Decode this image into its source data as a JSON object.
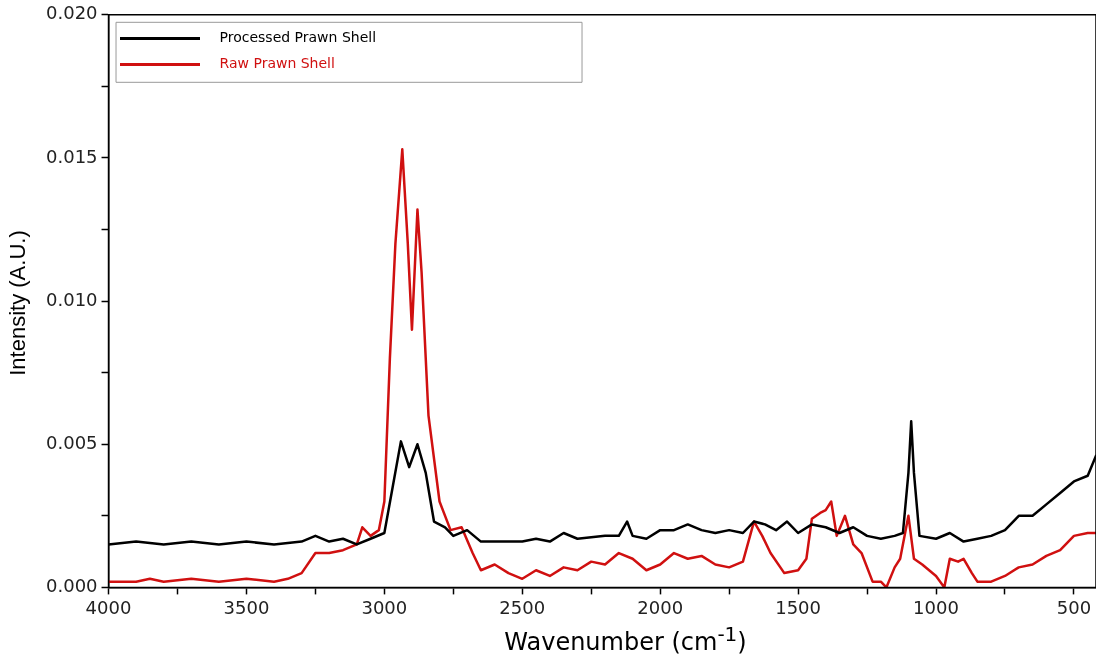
{
  "chart_data": {
    "type": "line",
    "xlabel": "Wavenumber (cm$^{-1}$)",
    "ylabel": "Intensity (A.U.)",
    "xlim": [
      4000,
      420
    ],
    "ylim": [
      0,
      0.02
    ],
    "xticks": [
      4000,
      {
        "value": 3750,
        "label": null
      },
      3500,
      {
        "value": 3250,
        "label": null
      },
      3000,
      {
        "value": 2750,
        "label": null
      },
      2500,
      {
        "value": 2250,
        "label": null
      },
      2000,
      {
        "value": 1750,
        "label": null
      },
      1500,
      {
        "value": 1250,
        "label": null
      },
      1000,
      {
        "value": 750,
        "label": null
      },
      500
    ],
    "yticks": [
      {
        "value": 0,
        "label": "0.000"
      },
      {
        "value": 0.0025,
        "label": null
      },
      {
        "value": 0.005,
        "label": "0.005"
      },
      {
        "value": 0.0075,
        "label": null
      },
      {
        "value": 0.01,
        "label": "0.010"
      },
      {
        "value": 0.0125,
        "label": null
      },
      {
        "value": 0.015,
        "label": "0.015"
      },
      {
        "value": 0.0175,
        "label": null
      },
      {
        "value": 0.02,
        "label": "0.020"
      }
    ],
    "grid": false,
    "legend": "top left",
    "marker": "none",
    "line_style": "solid",
    "series": [
      {
        "name": "Processed Prawn Shell",
        "color": "#000000",
        "x": [
          4000,
          3900,
          3800,
          3700,
          3600,
          3500,
          3400,
          3300,
          3250,
          3200,
          3150,
          3100,
          3050,
          3000,
          2970,
          2940,
          2910,
          2880,
          2850,
          2820,
          2780,
          2750,
          2700,
          2650,
          2600,
          2500,
          2450,
          2400,
          2350,
          2300,
          2200,
          2150,
          2120,
          2100,
          2050,
          2000,
          1950,
          1900,
          1850,
          1800,
          1750,
          1700,
          1660,
          1620,
          1580,
          1540,
          1500,
          1450,
          1400,
          1350,
          1300,
          1250,
          1200,
          1150,
          1120,
          1100,
          1090,
          1080,
          1060,
          1000,
          950,
          900,
          850,
          800,
          750,
          700,
          650,
          600,
          550,
          500,
          450,
          420
        ],
        "values": [
          0.0015,
          0.0016,
          0.0015,
          0.0016,
          0.0015,
          0.0016,
          0.0015,
          0.0016,
          0.0018,
          0.0016,
          0.0017,
          0.0015,
          0.0017,
          0.0019,
          0.0035,
          0.0051,
          0.0042,
          0.005,
          0.004,
          0.0023,
          0.0021,
          0.0018,
          0.002,
          0.0016,
          0.0016,
          0.0016,
          0.0017,
          0.0016,
          0.0019,
          0.0017,
          0.0018,
          0.0018,
          0.0023,
          0.0018,
          0.0017,
          0.002,
          0.002,
          0.0022,
          0.002,
          0.0019,
          0.002,
          0.0019,
          0.0023,
          0.0022,
          0.002,
          0.0023,
          0.0019,
          0.0022,
          0.0021,
          0.0019,
          0.0021,
          0.0018,
          0.0017,
          0.0018,
          0.0019,
          0.004,
          0.0058,
          0.004,
          0.0018,
          0.0017,
          0.0019,
          0.0016,
          0.0017,
          0.0018,
          0.002,
          0.0025,
          0.0025,
          0.0029,
          0.0033,
          0.0037,
          0.0039,
          0.0046
        ]
      },
      {
        "name": "Raw Prawn Shell",
        "color": "#d01010",
        "x": [
          4000,
          3900,
          3850,
          3800,
          3700,
          3600,
          3500,
          3400,
          3350,
          3300,
          3250,
          3200,
          3150,
          3100,
          3080,
          3050,
          3020,
          3000,
          2980,
          2960,
          2935,
          2915,
          2900,
          2880,
          2865,
          2840,
          2800,
          2760,
          2720,
          2680,
          2650,
          2600,
          2550,
          2500,
          2450,
          2400,
          2350,
          2300,
          2250,
          2200,
          2150,
          2100,
          2050,
          2000,
          1950,
          1900,
          1850,
          1800,
          1750,
          1700,
          1660,
          1630,
          1600,
          1550,
          1500,
          1470,
          1450,
          1420,
          1400,
          1380,
          1360,
          1330,
          1300,
          1270,
          1230,
          1200,
          1180,
          1150,
          1130,
          1100,
          1080,
          1050,
          1000,
          970,
          950,
          920,
          900,
          870,
          850,
          800,
          750,
          700,
          650,
          600,
          550,
          500,
          450,
          420
        ],
        "values": [
          0.0002,
          0.0002,
          0.0003,
          0.0002,
          0.0003,
          0.0002,
          0.0003,
          0.0002,
          0.0003,
          0.0005,
          0.0012,
          0.0012,
          0.0013,
          0.0015,
          0.0021,
          0.0018,
          0.002,
          0.003,
          0.008,
          0.012,
          0.0153,
          0.012,
          0.009,
          0.0132,
          0.011,
          0.006,
          0.003,
          0.002,
          0.0021,
          0.0012,
          0.0006,
          0.0008,
          0.0005,
          0.0003,
          0.0006,
          0.0004,
          0.0007,
          0.0006,
          0.0009,
          0.0008,
          0.0012,
          0.001,
          0.0006,
          0.0008,
          0.0012,
          0.001,
          0.0011,
          0.0008,
          0.0007,
          0.0009,
          0.0023,
          0.0018,
          0.0012,
          0.0005,
          0.0006,
          0.001,
          0.0024,
          0.0026,
          0.0027,
          0.003,
          0.0018,
          0.0025,
          0.0015,
          0.0012,
          0.0002,
          0.0002,
          0,
          0.0007,
          0.001,
          0.0025,
          0.001,
          0.0008,
          0.0004,
          0,
          0.001,
          0.0009,
          0.001,
          0.0005,
          0.0002,
          0.0002,
          0.0004,
          0.0007,
          0.0008,
          0.0011,
          0.0013,
          0.0018,
          0.0019,
          0.0019
        ]
      }
    ]
  }
}
